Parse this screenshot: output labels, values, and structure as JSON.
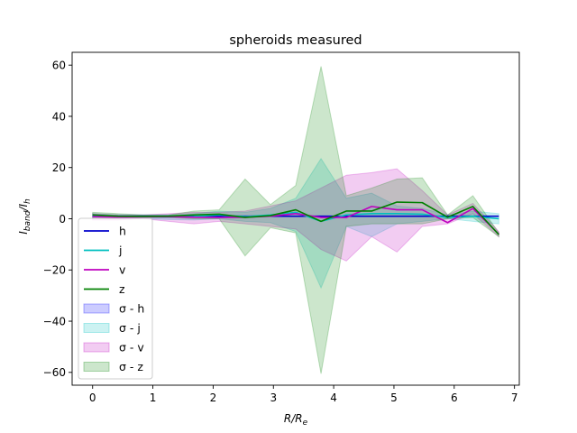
{
  "chart_data": {
    "type": "line",
    "title": "spheroids measured",
    "xlabel": "R/R",
    "xlabel_sub": "e",
    "ylabel": "I",
    "ylabel_sub1": "band",
    "ylabel_mid": "/I",
    "ylabel_sub2": "h",
    "xlim": [
      -0.34,
      7.08
    ],
    "ylim": [
      -65,
      65
    ],
    "x_ticks": [
      0,
      1,
      2,
      3,
      4,
      5,
      6,
      7
    ],
    "y_ticks": [
      -60,
      -40,
      -20,
      0,
      20,
      40,
      60
    ],
    "x_tick_labels": [
      "0",
      "1",
      "2",
      "3",
      "4",
      "5",
      "6",
      "7"
    ],
    "y_tick_labels": [
      "−60",
      "−40",
      "−20",
      "0",
      "20",
      "40",
      "60"
    ],
    "grid": false,
    "legend_placement": "lower-left",
    "x": [
      0,
      0.42,
      0.84,
      1.26,
      1.68,
      2.1,
      2.53,
      2.95,
      3.37,
      3.79,
      4.21,
      4.63,
      5.05,
      5.47,
      5.89,
      6.31,
      6.74
    ],
    "series": [
      {
        "name": "h",
        "color": "#0000cc",
        "values": [
          1,
          1,
          1,
          1,
          1,
          1,
          1,
          1,
          1,
          1,
          1,
          1,
          1,
          1,
          1,
          1,
          1
        ]
      },
      {
        "name": "j",
        "color": "#00bfbf",
        "values": [
          1.2,
          0.9,
          0.8,
          0.7,
          0.9,
          1.5,
          0.8,
          1.5,
          2.5,
          -1,
          1.5,
          2,
          2,
          1.8,
          0.5,
          1,
          0
        ]
      },
      {
        "name": "v",
        "color": "#bf00bf",
        "values": [
          0.8,
          0.6,
          0.7,
          0.8,
          0.6,
          0.5,
          0.6,
          1,
          2,
          0.5,
          0.5,
          4.8,
          3.5,
          3.5,
          -1.5,
          4,
          -6
        ]
      },
      {
        "name": "z",
        "color": "#008000",
        "values": [
          1.5,
          1,
          0.9,
          1,
          1.5,
          1.8,
          0.5,
          1.2,
          3.5,
          -1,
          3,
          3,
          6.5,
          6.3,
          0.6,
          4.8,
          -6.2
        ]
      }
    ],
    "bands": [
      {
        "name": "σ - h",
        "color": "#0000ff",
        "opacity": 0.2,
        "lower": [
          1,
          1,
          1,
          1,
          1,
          1,
          1,
          1,
          1,
          1,
          1,
          1,
          1,
          1,
          1,
          1,
          1
        ],
        "upper": [
          1,
          1,
          1,
          1,
          1,
          1,
          1,
          1,
          1,
          1,
          1,
          1,
          1,
          1,
          1,
          1,
          1
        ]
      },
      {
        "name": "σ - j",
        "color": "#00bfbf",
        "opacity": 0.2,
        "lower": [
          0.2,
          0,
          0,
          -0.3,
          -0.5,
          0,
          -1,
          -1.5,
          -5,
          -27,
          -3,
          -7,
          -2,
          -1,
          0,
          -1,
          -2
        ],
        "upper": [
          2,
          1.5,
          1.5,
          1.5,
          2,
          3,
          2.5,
          4,
          8,
          23.5,
          8,
          10,
          5,
          4,
          1.5,
          3,
          2
        ]
      },
      {
        "name": "σ - v",
        "color": "#bf00bf",
        "opacity": 0.2,
        "lower": [
          -0.5,
          -0.5,
          0,
          -1,
          -2,
          -1,
          -2,
          -3,
          -4,
          -12,
          -16.5,
          -7,
          -13,
          -3,
          -2,
          2,
          -7
        ],
        "upper": [
          2,
          1.5,
          1.5,
          2,
          2.5,
          2.5,
          3,
          5,
          7,
          12,
          17,
          18,
          19.5,
          11,
          1.5,
          6,
          -5
        ]
      },
      {
        "name": "σ - z",
        "color": "#008000",
        "opacity": 0.2,
        "lower": [
          0,
          0,
          0.5,
          0.5,
          0,
          0,
          -14.5,
          -3.5,
          -5.5,
          -60.5,
          -3,
          -2,
          -2,
          -2,
          0,
          0.5,
          -7
        ],
        "upper": [
          2.5,
          2,
          1.5,
          1.5,
          3,
          3.5,
          15.5,
          5.5,
          13,
          59.5,
          9,
          12,
          15.5,
          16,
          1.5,
          9,
          -5.5
        ]
      }
    ]
  }
}
